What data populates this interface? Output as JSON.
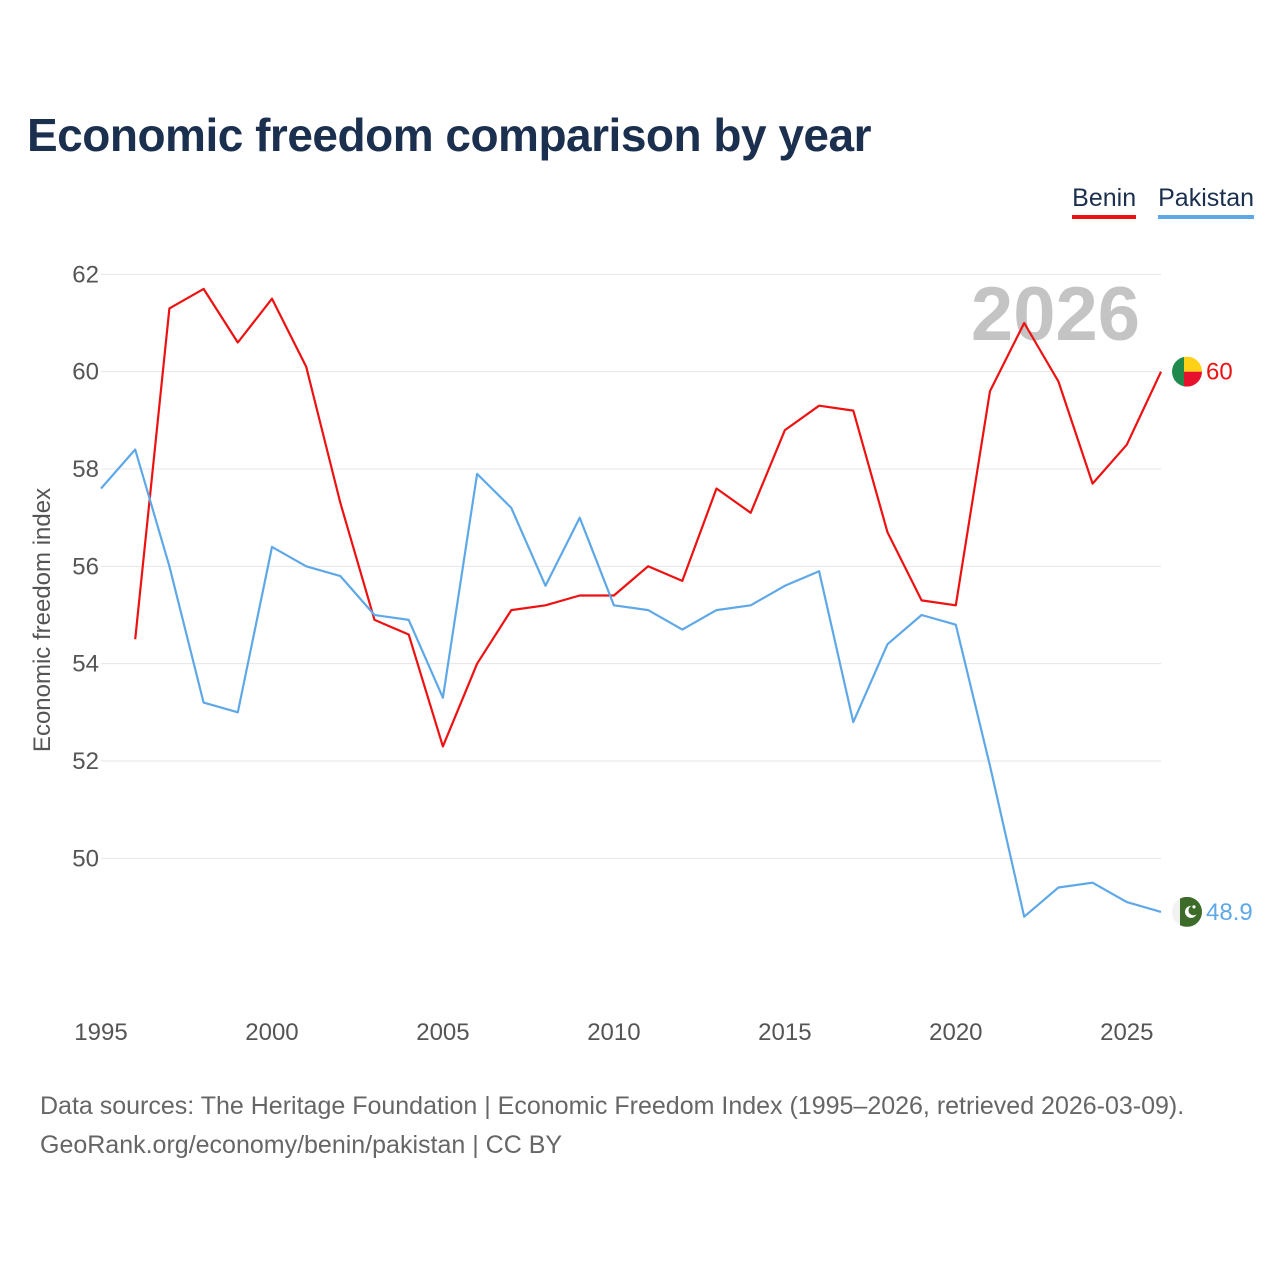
{
  "title": "Economic freedom comparison by year",
  "footer": {
    "line1": "Data sources: The Heritage Foundation | Economic Freedom Index (1995–2026, retrieved 2026-03-09).",
    "line2": "GeoRank.org/economy/benin/pakistan | CC BY"
  },
  "chart_data": {
    "type": "line",
    "title": "Economic freedom comparison by year",
    "ylabel": "Economic freedom index",
    "xlabel": "",
    "current_year_label": "2026",
    "xlim": [
      1995,
      2026
    ],
    "ylim": [
      47.5,
      62.5
    ],
    "x_ticks": [
      1995,
      2000,
      2005,
      2010,
      2015,
      2020,
      2025
    ],
    "y_ticks": [
      50,
      52,
      54,
      56,
      58,
      60,
      62
    ],
    "legend_position": "top-right",
    "series": [
      {
        "name": "Benin",
        "color": "#ee1111",
        "end_label": "60",
        "flag_icon": "benin-flag-icon",
        "x": [
          1996,
          1997,
          1998,
          1999,
          2000,
          2001,
          2002,
          2003,
          2004,
          2005,
          2006,
          2007,
          2008,
          2009,
          2010,
          2011,
          2012,
          2013,
          2014,
          2015,
          2016,
          2017,
          2018,
          2019,
          2020,
          2021,
          2022,
          2023,
          2024,
          2025,
          2026
        ],
        "values": [
          54.5,
          61.3,
          61.7,
          60.6,
          61.5,
          60.1,
          57.3,
          54.9,
          54.6,
          52.3,
          54.0,
          55.1,
          55.2,
          55.4,
          55.4,
          56.0,
          55.7,
          57.6,
          57.1,
          58.8,
          59.3,
          59.2,
          56.7,
          55.3,
          55.2,
          59.6,
          61.0,
          59.8,
          57.7,
          58.5,
          60.0
        ]
      },
      {
        "name": "Pakistan",
        "color": "#5fa8e8",
        "end_label": "48.9",
        "flag_icon": "pakistan-flag-icon",
        "x": [
          1995,
          1996,
          1997,
          1998,
          1999,
          2000,
          2001,
          2002,
          2003,
          2004,
          2005,
          2006,
          2007,
          2008,
          2009,
          2010,
          2011,
          2012,
          2013,
          2014,
          2015,
          2016,
          2017,
          2018,
          2019,
          2020,
          2021,
          2022,
          2023,
          2024,
          2025,
          2026
        ],
        "values": [
          57.6,
          58.4,
          56.0,
          53.2,
          53.0,
          56.4,
          56.0,
          55.8,
          55.0,
          54.9,
          53.3,
          57.9,
          57.2,
          55.6,
          57.0,
          55.2,
          55.1,
          54.7,
          55.1,
          55.2,
          55.6,
          55.9,
          52.8,
          54.4,
          55.0,
          54.8,
          51.9,
          48.8,
          49.4,
          49.5,
          49.1,
          48.9
        ]
      }
    ]
  }
}
